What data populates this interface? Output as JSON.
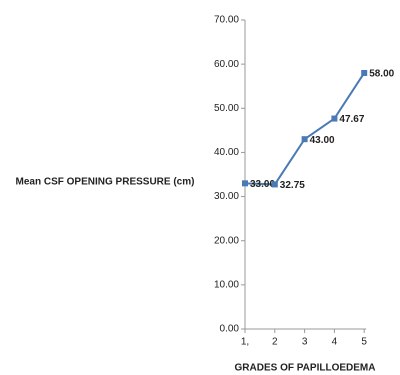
{
  "chart_data": {
    "type": "line",
    "y_axis_label": "Mean  CSF OPENING PRESSURE (cm)",
    "x_axis_label": "GRADES OF PAPILLOEDEMA",
    "categories": [
      "1,",
      "2",
      "3",
      "4",
      "5"
    ],
    "series": [
      {
        "name": "Mean CSF opening pressure",
        "color": "#4a7ab5",
        "values": [
          33,
          32.75,
          43,
          47.67,
          58
        ],
        "value_labels": [
          "33.00",
          "32.75",
          "43.00",
          "47.67",
          "58.00"
        ]
      }
    ],
    "ylim": [
      0,
      70
    ],
    "yticks": [
      {
        "value": 0,
        "label": "0.00"
      },
      {
        "value": 10,
        "label": "10.00"
      },
      {
        "value": 20,
        "label": "20.00"
      },
      {
        "value": 30,
        "label": "30.00"
      },
      {
        "value": 40,
        "label": "40.00"
      },
      {
        "value": 50,
        "label": "50.00"
      },
      {
        "value": 60,
        "label": "60.00"
      },
      {
        "value": 70,
        "label": "70.00"
      }
    ],
    "grid": false
  }
}
